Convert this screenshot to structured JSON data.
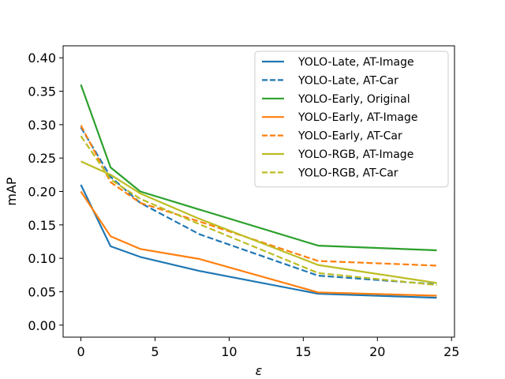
{
  "chart_data": {
    "type": "line",
    "title": "",
    "xlabel": "ε",
    "ylabel": "mAP",
    "xlim": [
      -1.2,
      25.2
    ],
    "ylim": [
      -0.018,
      0.418
    ],
    "xticks": [
      0,
      5,
      10,
      15,
      20,
      25
    ],
    "yticks": [
      0.0,
      0.05,
      0.1,
      0.15,
      0.2,
      0.25,
      0.3,
      0.35,
      0.4
    ],
    "ytick_labels": [
      "0.00",
      "0.05",
      "0.10",
      "0.15",
      "0.20",
      "0.25",
      "0.30",
      "0.35",
      "0.40"
    ],
    "xtick_labels": [
      "0",
      "5",
      "10",
      "15",
      "20",
      "25"
    ],
    "grid": false,
    "legend_position": "top-right",
    "x": [
      0,
      2,
      4,
      8,
      16,
      24
    ],
    "series": [
      {
        "name": "YOLO-Late, AT-Image",
        "color": "#1f77b4",
        "dashed": false,
        "values": [
          0.21,
          0.118,
          0.102,
          0.081,
          0.047,
          0.041
        ]
      },
      {
        "name": "YOLO-Late, AT-Car",
        "color": "#1f77b4",
        "dashed": true,
        "values": [
          0.296,
          0.222,
          0.183,
          0.136,
          0.074,
          0.061
        ]
      },
      {
        "name": "YOLO-Early, Original",
        "color": "#2ca02c",
        "dashed": false,
        "values": [
          0.36,
          0.236,
          0.2,
          0.173,
          0.119,
          0.112
        ]
      },
      {
        "name": "YOLO-Early, AT-Image",
        "color": "#ff7f0e",
        "dashed": false,
        "values": [
          0.2,
          0.133,
          0.114,
          0.099,
          0.049,
          0.044
        ]
      },
      {
        "name": "YOLO-Early, AT-Car",
        "color": "#ff7f0e",
        "dashed": true,
        "values": [
          0.299,
          0.214,
          0.183,
          0.155,
          0.096,
          0.089
        ]
      },
      {
        "name": "YOLO-RGB, AT-Image",
        "color": "#bcbd22",
        "dashed": false,
        "values": [
          0.245,
          0.225,
          0.197,
          0.159,
          0.09,
          0.063
        ]
      },
      {
        "name": "YOLO-RGB, AT-Car",
        "color": "#bcbd22",
        "dashed": true,
        "values": [
          0.283,
          0.218,
          0.189,
          0.151,
          0.078,
          0.06
        ]
      }
    ]
  }
}
